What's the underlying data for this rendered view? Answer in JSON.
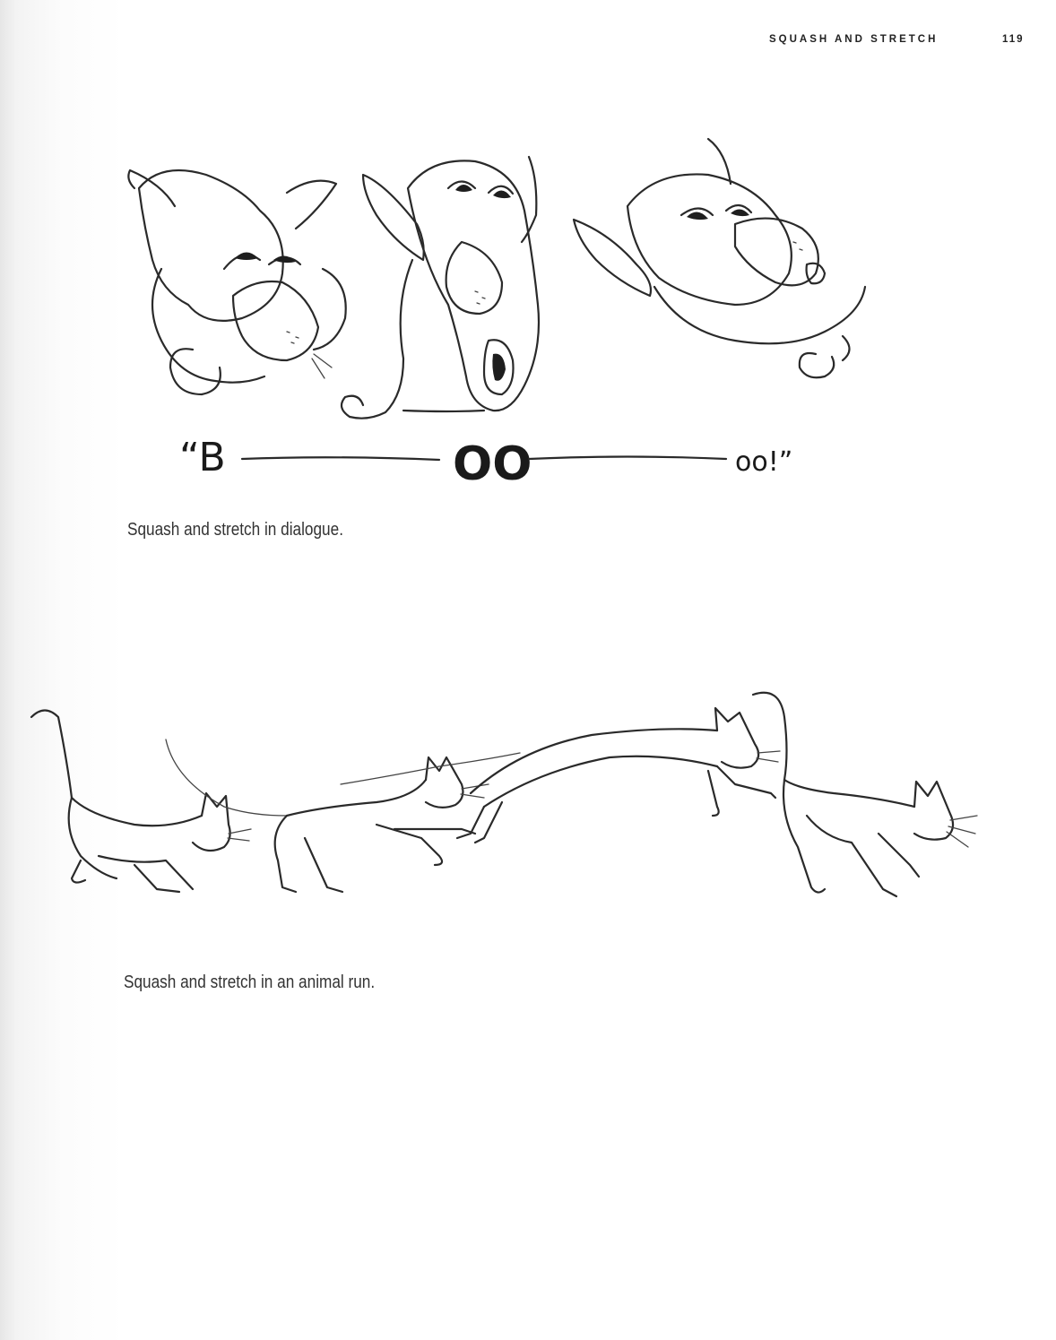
{
  "running_head": {
    "title": "SQUASH AND STRETCH",
    "page_number": "119"
  },
  "figures": [
    {
      "subject": "three cartoon heads saying boo",
      "lettering": {
        "open": "“B",
        "middle": "OO",
        "end": "oo!”"
      },
      "caption": "Squash and stretch in dialogue."
    },
    {
      "subject": "cat running sequence",
      "caption": "Squash and stretch in an animal run."
    }
  ]
}
